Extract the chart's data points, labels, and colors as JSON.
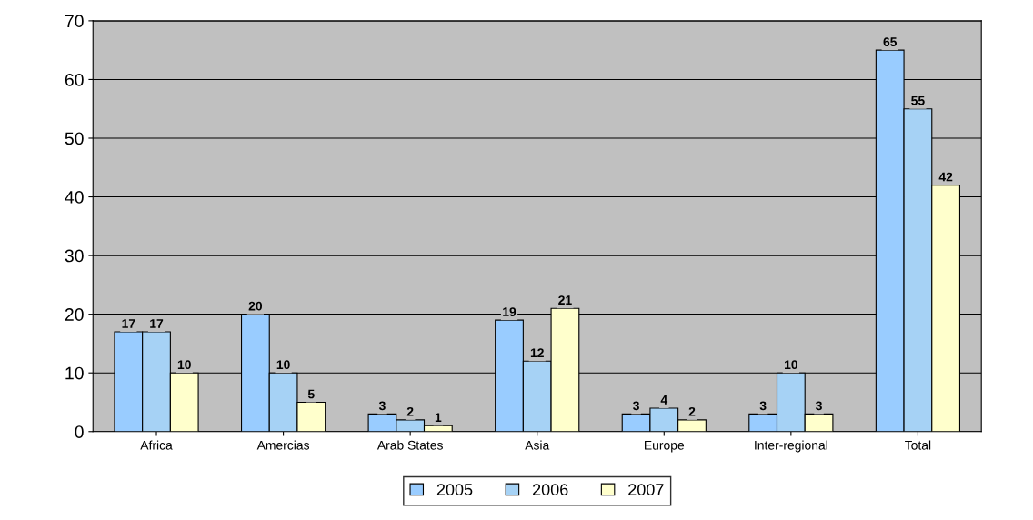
{
  "chart_data": {
    "type": "bar",
    "categories": [
      "Africa",
      "Amercias",
      "Arab States",
      "Asia",
      "Europe",
      "Inter-regional",
      "Total"
    ],
    "series": [
      {
        "name": "2005",
        "color": "#99ccff",
        "values": [
          17,
          20,
          3,
          19,
          3,
          3,
          65
        ]
      },
      {
        "name": "2006",
        "color": "#a6d2f5",
        "values": [
          17,
          10,
          2,
          12,
          4,
          10,
          55
        ]
      },
      {
        "name": "2007",
        "color": "#ffffcc",
        "values": [
          10,
          5,
          1,
          21,
          2,
          3,
          42
        ]
      }
    ],
    "ylim": [
      0,
      70
    ],
    "yticks": [
      0,
      10,
      20,
      30,
      40,
      50,
      60,
      70
    ],
    "grid": "y",
    "legend": "bottom",
    "data_labels": true
  }
}
